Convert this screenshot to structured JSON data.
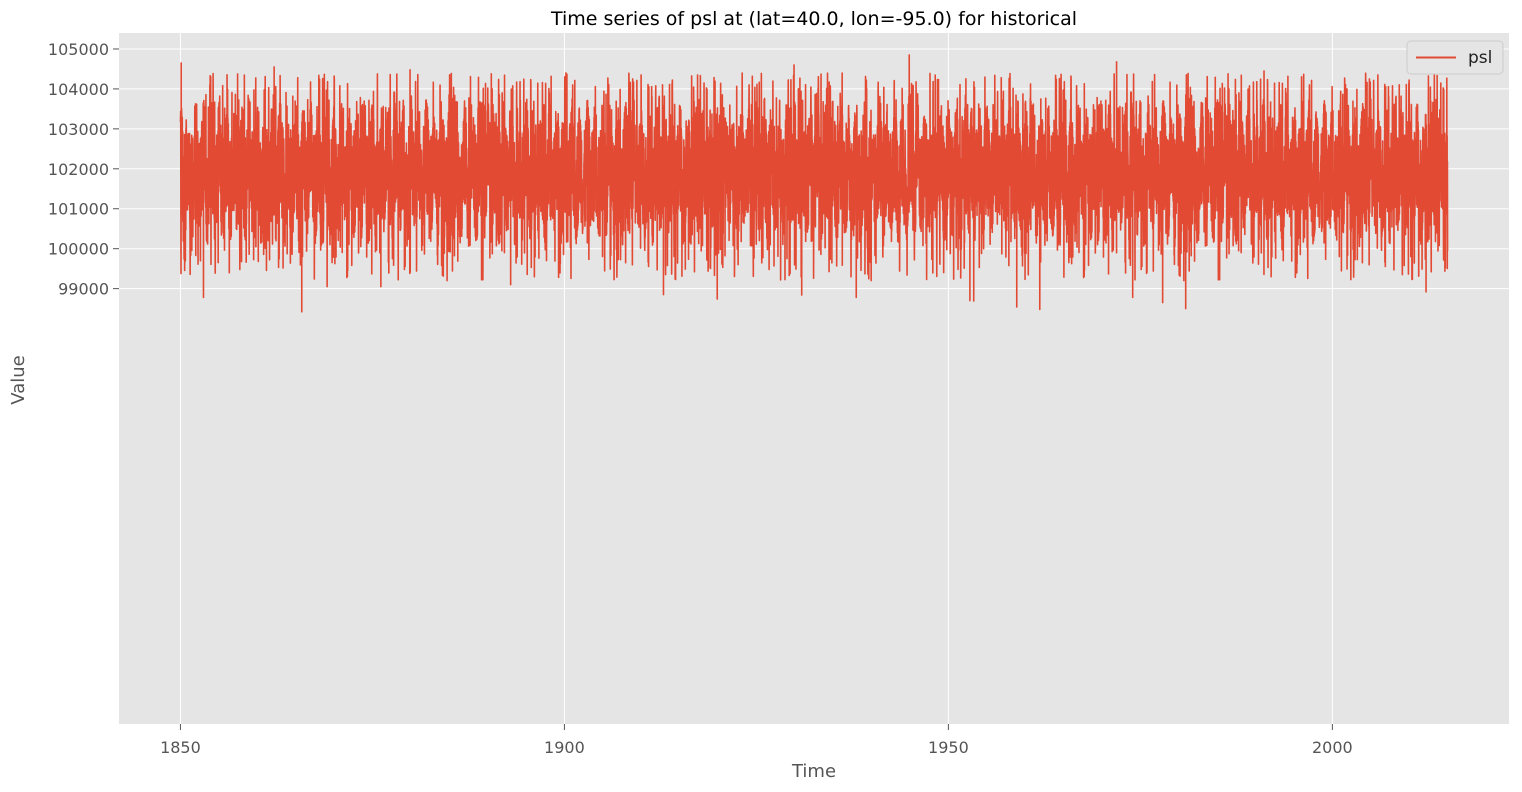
{
  "chart_data": {
    "type": "line",
    "title": "Time series of psl at (lat=40.0, lon=-95.0) for historical",
    "xlabel": "Time",
    "ylabel": "Value",
    "xlim": [
      1842,
      2023
    ],
    "ylim": [
      88100,
      105400
    ],
    "xticks": [
      1850,
      1900,
      1950,
      2000
    ],
    "xtick_labels": [
      "1850",
      "1900",
      "1950",
      "2000"
    ],
    "yticks": [
      99000,
      100000,
      101000,
      102000,
      103000,
      104000,
      105000
    ],
    "ytick_labels": [
      "99000",
      "100000",
      "101000",
      "102000",
      "103000",
      "104000",
      "105000"
    ],
    "grid": true,
    "legend_position": "top-right",
    "colors": {
      "series": "#E24A33",
      "background": "#E5E5E5",
      "grid": "#FFFFFF"
    },
    "x_start": 1850,
    "x_end": 2015,
    "series": [
      {
        "name": "psl",
        "typical_range": [
          100500,
          103300
        ],
        "mean": 101900,
        "extremes": [
          {
            "x": 1850.1,
            "y": 104650
          },
          {
            "x": 1850.4,
            "y": 100200
          },
          {
            "x": 1853.0,
            "y": 98780
          },
          {
            "x": 1862.2,
            "y": 104550
          },
          {
            "x": 1865.8,
            "y": 98420
          },
          {
            "x": 1869.1,
            "y": 99050
          },
          {
            "x": 1876.1,
            "y": 99050
          },
          {
            "x": 1879.9,
            "y": 104480
          },
          {
            "x": 1893.0,
            "y": 99100
          },
          {
            "x": 1900.2,
            "y": 104400
          },
          {
            "x": 1912.9,
            "y": 98850
          },
          {
            "x": 1919.9,
            "y": 98740
          },
          {
            "x": 1929.9,
            "y": 104600
          },
          {
            "x": 1930.9,
            "y": 98840
          },
          {
            "x": 1938.0,
            "y": 98780
          },
          {
            "x": 1944.9,
            "y": 104850
          },
          {
            "x": 1952.8,
            "y": 98700
          },
          {
            "x": 1953.3,
            "y": 98690
          },
          {
            "x": 1958.9,
            "y": 98540
          },
          {
            "x": 1961.9,
            "y": 98480
          },
          {
            "x": 1971.9,
            "y": 104680
          },
          {
            "x": 1974.0,
            "y": 98780
          },
          {
            "x": 1977.9,
            "y": 98650
          },
          {
            "x": 1980.9,
            "y": 98500
          },
          {
            "x": 1991.1,
            "y": 104450
          },
          {
            "x": 2001.9,
            "y": 104000
          },
          {
            "x": 2012.2,
            "y": 98920
          },
          {
            "x": 2014.9,
            "y": 104270
          },
          {
            "x": 2015.0,
            "y": 99950
          }
        ]
      }
    ]
  }
}
